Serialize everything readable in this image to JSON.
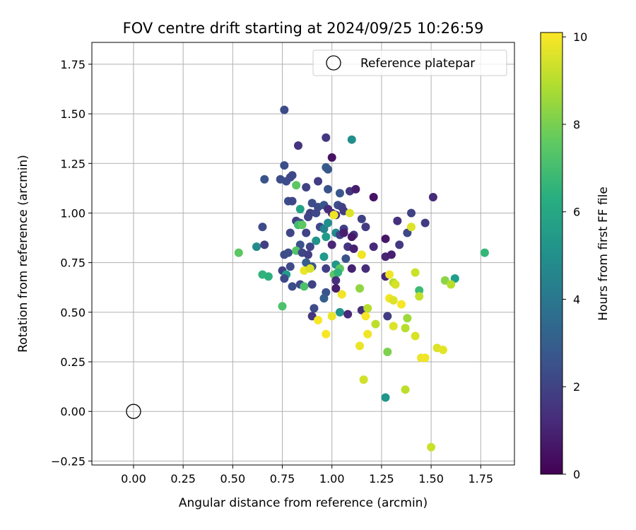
{
  "chart_data": {
    "type": "scatter",
    "title": "FOV centre drift starting at 2024/09/25 10:26:59",
    "xlabel": "Angular distance from reference (arcmin)",
    "ylabel": "Rotation from reference (arcmin)",
    "xlim": [
      -0.21,
      1.92
    ],
    "ylim": [
      -0.27,
      1.86
    ],
    "xticks": [
      "0.00",
      "0.25",
      "0.50",
      "0.75",
      "1.00",
      "1.25",
      "1.50",
      "1.75"
    ],
    "xtick_values": [
      0,
      0.25,
      0.5,
      0.75,
      1.0,
      1.25,
      1.5,
      1.75
    ],
    "yticks": [
      "−0.25",
      "0.00",
      "0.25",
      "0.50",
      "0.75",
      "1.00",
      "1.25",
      "1.50",
      "1.75"
    ],
    "ytick_values": [
      -0.25,
      0,
      0.25,
      0.5,
      0.75,
      1.0,
      1.25,
      1.5,
      1.75
    ],
    "grid": true,
    "legend": {
      "label": "Reference platepar",
      "placement": "top-right"
    },
    "reference_point": {
      "x": 0.0,
      "y": 0.0
    },
    "colorbar": {
      "label": "Hours from first FF file",
      "min": 0,
      "max": 10.1,
      "colormap": "viridis",
      "ticks": [
        "0",
        "2",
        "4",
        "6",
        "8",
        "10"
      ],
      "tick_values": [
        0,
        2,
        4,
        6,
        8,
        10
      ]
    },
    "points": [
      [
        0.76,
        1.52,
        2.3
      ],
      [
        0.97,
        1.38,
        1.7
      ],
      [
        1.1,
        1.37,
        5.0
      ],
      [
        0.83,
        1.34,
        1.5
      ],
      [
        1.0,
        1.28,
        0.5
      ],
      [
        0.76,
        1.24,
        2.5
      ],
      [
        0.97,
        1.23,
        3.0
      ],
      [
        0.98,
        1.22,
        2.8
      ],
      [
        0.66,
        1.17,
        2.6
      ],
      [
        0.74,
        1.17,
        2.4
      ],
      [
        0.79,
        1.18,
        2.2
      ],
      [
        0.77,
        1.16,
        2.4
      ],
      [
        0.8,
        1.19,
        2.2
      ],
      [
        0.82,
        1.14,
        7.5
      ],
      [
        0.93,
        1.16,
        1.8
      ],
      [
        0.87,
        1.13,
        2.0
      ],
      [
        0.98,
        1.12,
        2.6
      ],
      [
        1.04,
        1.1,
        2.8
      ],
      [
        1.09,
        1.11,
        1.6
      ],
      [
        1.12,
        1.12,
        0.8
      ],
      [
        1.21,
        1.08,
        0.5
      ],
      [
        1.51,
        1.08,
        1.2
      ],
      [
        0.78,
        1.06,
        2.4
      ],
      [
        0.8,
        1.06,
        2.2
      ],
      [
        0.84,
        1.02,
        5.8
      ],
      [
        0.9,
        1.05,
        2.4
      ],
      [
        0.93,
        1.03,
        2.3
      ],
      [
        0.96,
        1.04,
        2.7
      ],
      [
        1.03,
        1.04,
        2.5
      ],
      [
        1.05,
        1.03,
        2.0
      ],
      [
        1.06,
        1.01,
        1.8
      ],
      [
        0.89,
        1.0,
        1.9
      ],
      [
        0.92,
        1.0,
        2.2
      ],
      [
        0.98,
        1.02,
        1.3
      ],
      [
        1.0,
        1.0,
        1.2
      ],
      [
        1.02,
        0.99,
        1.6
      ],
      [
        1.09,
        1.0,
        9.6
      ],
      [
        1.01,
        0.99,
        9.9
      ],
      [
        1.15,
        0.97,
        2.0
      ],
      [
        1.17,
        0.93,
        1.8
      ],
      [
        1.33,
        0.96,
        1.4
      ],
      [
        1.4,
        1.0,
        2.0
      ],
      [
        0.82,
        0.96,
        1.9
      ],
      [
        0.84,
        0.95,
        2.4
      ],
      [
        0.83,
        0.94,
        7.0
      ],
      [
        0.85,
        0.94,
        7.5
      ],
      [
        0.88,
        0.98,
        2.0
      ],
      [
        0.94,
        0.93,
        2.2
      ],
      [
        0.96,
        0.92,
        4.5
      ],
      [
        0.98,
        0.95,
        5.0
      ],
      [
        1.02,
        0.9,
        4.8
      ],
      [
        1.04,
        0.89,
        2.0
      ],
      [
        1.06,
        0.92,
        1.9
      ],
      [
        1.11,
        0.89,
        1.7
      ],
      [
        0.65,
        0.93,
        2.3
      ],
      [
        0.79,
        0.9,
        2.1
      ],
      [
        0.87,
        0.9,
        2.0
      ],
      [
        0.97,
        0.88,
        5.5
      ],
      [
        1.06,
        0.9,
        0.8
      ],
      [
        1.1,
        0.88,
        0.7
      ],
      [
        1.27,
        0.87,
        0.6
      ],
      [
        1.38,
        0.9,
        2.2
      ],
      [
        1.4,
        0.93,
        9.6
      ],
      [
        1.47,
        0.95,
        1.8
      ],
      [
        0.62,
        0.83,
        4.8
      ],
      [
        0.66,
        0.84,
        1.9
      ],
      [
        0.84,
        0.84,
        2.6
      ],
      [
        0.89,
        0.83,
        2.1
      ],
      [
        0.92,
        0.86,
        5.2
      ],
      [
        1.0,
        0.84,
        1.1
      ],
      [
        1.08,
        0.83,
        1.6
      ],
      [
        1.11,
        0.82,
        0.9
      ],
      [
        1.21,
        0.83,
        1.2
      ],
      [
        1.34,
        0.84,
        1.7
      ],
      [
        0.53,
        0.8,
        7.5
      ],
      [
        0.76,
        0.79,
        2.3
      ],
      [
        0.78,
        0.8,
        2.4
      ],
      [
        0.82,
        0.81,
        7.3
      ],
      [
        0.85,
        0.8,
        2.1
      ],
      [
        0.88,
        0.79,
        2.0
      ],
      [
        0.96,
        0.78,
        5.5
      ],
      [
        1.07,
        0.77,
        2.6
      ],
      [
        1.15,
        0.79,
        9.9
      ],
      [
        1.27,
        0.78,
        1.0
      ],
      [
        1.3,
        0.79,
        0.9
      ],
      [
        0.75,
        0.71,
        2.0
      ],
      [
        0.77,
        0.69,
        5.6
      ],
      [
        0.79,
        0.73,
        2.3
      ],
      [
        0.87,
        0.75,
        3.0
      ],
      [
        0.9,
        0.73,
        2.6
      ],
      [
        0.97,
        0.72,
        1.9
      ],
      [
        1.02,
        0.74,
        5.3
      ],
      [
        1.04,
        0.72,
        7.5
      ],
      [
        1.1,
        0.72,
        0.9
      ],
      [
        1.17,
        0.72,
        1.3
      ],
      [
        1.77,
        0.8,
        6.7
      ],
      [
        0.65,
        0.69,
        6.5
      ],
      [
        0.68,
        0.68,
        6.4
      ],
      [
        0.76,
        0.67,
        2.3
      ],
      [
        0.86,
        0.71,
        9.8
      ],
      [
        0.89,
        0.72,
        9.5
      ],
      [
        1.01,
        0.69,
        7.5
      ],
      [
        1.03,
        0.7,
        6.5
      ],
      [
        1.27,
        0.68,
        1.1
      ],
      [
        1.29,
        0.69,
        9.9
      ],
      [
        1.42,
        0.7,
        9.3
      ],
      [
        1.62,
        0.67,
        5.6
      ],
      [
        0.8,
        0.63,
        2.4
      ],
      [
        0.84,
        0.64,
        2.2
      ],
      [
        0.86,
        0.63,
        7.2
      ],
      [
        0.9,
        0.64,
        2.0
      ],
      [
        1.02,
        0.66,
        1.4
      ],
      [
        1.02,
        0.62,
        0.8
      ],
      [
        1.05,
        0.59,
        9.9
      ],
      [
        1.14,
        0.62,
        8.4
      ],
      [
        1.31,
        0.65,
        9.0
      ],
      [
        1.32,
        0.64,
        9.5
      ],
      [
        1.44,
        0.61,
        6.9
      ],
      [
        1.57,
        0.66,
        8.3
      ],
      [
        1.6,
        0.64,
        9.0
      ],
      [
        0.97,
        0.6,
        2.6
      ],
      [
        0.96,
        0.57,
        3.0
      ],
      [
        1.29,
        0.57,
        9.9
      ],
      [
        1.31,
        0.56,
        9.6
      ],
      [
        1.35,
        0.54,
        10.0
      ],
      [
        1.44,
        0.58,
        9.2
      ],
      [
        0.75,
        0.53,
        7.2
      ],
      [
        0.91,
        0.52,
        2.3
      ],
      [
        0.9,
        0.48,
        1.6
      ],
      [
        1.0,
        0.48,
        9.8
      ],
      [
        1.04,
        0.5,
        5.2
      ],
      [
        1.08,
        0.49,
        1.2
      ],
      [
        1.15,
        0.51,
        1.4
      ],
      [
        1.18,
        0.52,
        9.0
      ],
      [
        1.17,
        0.48,
        10.0
      ],
      [
        1.28,
        0.48,
        1.8
      ],
      [
        0.93,
        0.46,
        10.0
      ],
      [
        1.22,
        0.44,
        9.1
      ],
      [
        1.31,
        0.43,
        9.6
      ],
      [
        1.37,
        0.42,
        9.0
      ],
      [
        1.38,
        0.47,
        8.6
      ],
      [
        0.97,
        0.39,
        10.0
      ],
      [
        1.18,
        0.39,
        9.9
      ],
      [
        1.42,
        0.38,
        9.5
      ],
      [
        1.14,
        0.33,
        9.8
      ],
      [
        1.53,
        0.32,
        9.6
      ],
      [
        1.56,
        0.31,
        9.7
      ],
      [
        1.28,
        0.3,
        8.1
      ],
      [
        1.45,
        0.27,
        9.8
      ],
      [
        1.47,
        0.27,
        9.9
      ],
      [
        1.16,
        0.16,
        9.4
      ],
      [
        1.37,
        0.11,
        9.1
      ],
      [
        1.27,
        0.07,
        5.3
      ],
      [
        1.5,
        -0.18,
        9.3
      ]
    ]
  }
}
